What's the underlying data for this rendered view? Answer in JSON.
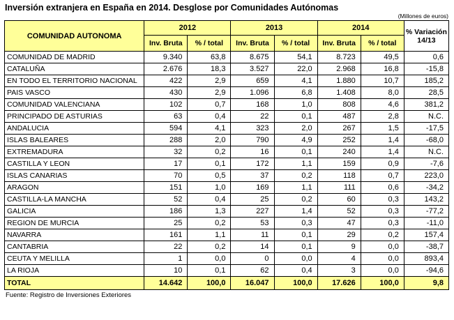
{
  "colors": {
    "header_bg": "#ffff99",
    "total_row_bg": "#ffff99",
    "border": "#000000",
    "variation_header_bg": "#ffffff"
  },
  "chart_data": {
    "type": "table",
    "title": "Inversión extranjera en España en 2014. Desglose por Comunidades Autónomas",
    "units_note": "(Millones de euros)",
    "source": "Fuente: Registro de Inversiones Exteriores",
    "header": {
      "corner": "COMUNIDAD AUTONOMA",
      "year_groups": [
        "2012",
        "2013",
        "2014"
      ],
      "sub_headers": [
        "Inv. Bruta",
        "% / total"
      ],
      "variation": "% Variación 14/13"
    },
    "column_keys": [
      "comunidad_autonoma",
      "inv_bruta_2012",
      "pct_total_2012",
      "inv_bruta_2013",
      "pct_total_2013",
      "inv_bruta_2014",
      "pct_total_2014",
      "pct_variacion_14_13"
    ],
    "rows": [
      {
        "name": "COMUNIDAD DE MADRID",
        "values": [
          "9.340",
          "63,8",
          "8.675",
          "54,1",
          "8.723",
          "49,5",
          "0,6"
        ]
      },
      {
        "name": "CATALUÑA",
        "values": [
          "2.676",
          "18,3",
          "3.527",
          "22,0",
          "2.968",
          "16,8",
          "-15,8"
        ]
      },
      {
        "name": "EN TODO EL TERRITORIO NACIONAL",
        "values": [
          "422",
          "2,9",
          "659",
          "4,1",
          "1.880",
          "10,7",
          "185,2"
        ]
      },
      {
        "name": "PAIS VASCO",
        "values": [
          "430",
          "2,9",
          "1.096",
          "6,8",
          "1.408",
          "8,0",
          "28,5"
        ]
      },
      {
        "name": "COMUNIDAD VALENCIANA",
        "values": [
          "102",
          "0,7",
          "168",
          "1,0",
          "808",
          "4,6",
          "381,2"
        ]
      },
      {
        "name": "PRINCIPADO DE ASTURIAS",
        "values": [
          "63",
          "0,4",
          "22",
          "0,1",
          "487",
          "2,8",
          "N.C."
        ]
      },
      {
        "name": "ANDALUCIA",
        "values": [
          "594",
          "4,1",
          "323",
          "2,0",
          "267",
          "1,5",
          "-17,5"
        ]
      },
      {
        "name": "ISLAS BALEARES",
        "values": [
          "288",
          "2,0",
          "790",
          "4,9",
          "252",
          "1,4",
          "-68,0"
        ]
      },
      {
        "name": "EXTREMADURA",
        "values": [
          "32",
          "0,2",
          "16",
          "0,1",
          "240",
          "1,4",
          "N.C."
        ]
      },
      {
        "name": "CASTILLA Y LEON",
        "values": [
          "17",
          "0,1",
          "172",
          "1,1",
          "159",
          "0,9",
          "-7,6"
        ]
      },
      {
        "name": "ISLAS CANARIAS",
        "values": [
          "70",
          "0,5",
          "37",
          "0,2",
          "118",
          "0,7",
          "223,0"
        ]
      },
      {
        "name": "ARAGON",
        "values": [
          "151",
          "1,0",
          "169",
          "1,1",
          "111",
          "0,6",
          "-34,2"
        ]
      },
      {
        "name": "CASTILLA-LA MANCHA",
        "values": [
          "52",
          "0,4",
          "25",
          "0,2",
          "60",
          "0,3",
          "143,2"
        ]
      },
      {
        "name": "GALICIA",
        "values": [
          "186",
          "1,3",
          "227",
          "1,4",
          "52",
          "0,3",
          "-77,2"
        ]
      },
      {
        "name": "REGION DE MURCIA",
        "values": [
          "25",
          "0,2",
          "53",
          "0,3",
          "47",
          "0,3",
          "-11,0"
        ]
      },
      {
        "name": "NAVARRA",
        "values": [
          "161",
          "1,1",
          "11",
          "0,1",
          "29",
          "0,2",
          "157,4"
        ]
      },
      {
        "name": "CANTABRIA",
        "values": [
          "22",
          "0,2",
          "14",
          "0,1",
          "9",
          "0,0",
          "-38,7"
        ]
      },
      {
        "name": "CEUTA Y MELILLA",
        "values": [
          "1",
          "0,0",
          "0",
          "0,0",
          "4",
          "0,0",
          "893,4"
        ]
      },
      {
        "name": "LA RIOJA",
        "values": [
          "10",
          "0,1",
          "62",
          "0,4",
          "3",
          "0,0",
          "-94,6"
        ]
      }
    ],
    "total_row": {
      "name": "TOTAL",
      "values": [
        "14.642",
        "100,0",
        "16.047",
        "100,0",
        "17.626",
        "100,0",
        "9,8"
      ]
    }
  }
}
